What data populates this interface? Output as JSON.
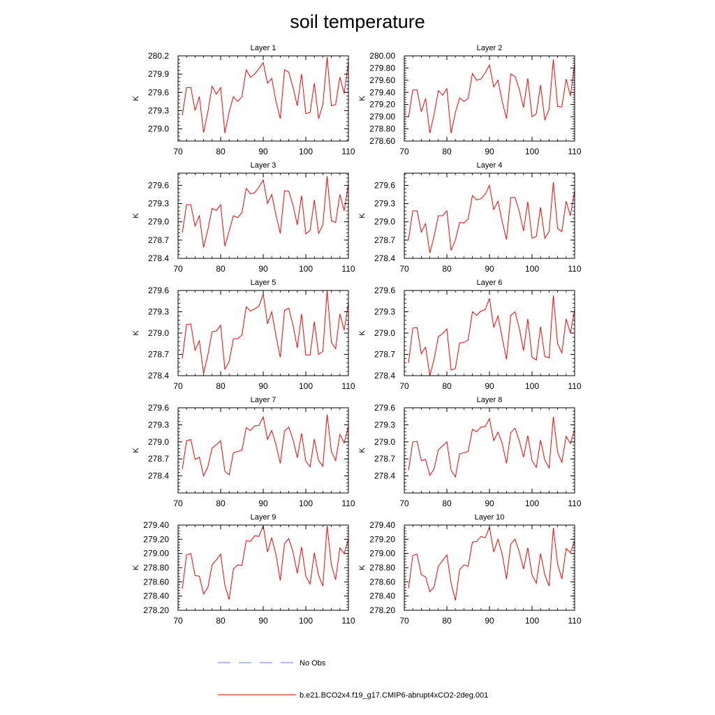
{
  "title": "soil temperature",
  "legend": {
    "entries": [
      {
        "label": "No Obs",
        "color": "#6b78c9",
        "style": "dashed"
      },
      {
        "label": "b.e21.BCO2x4.f19_g17.CMIP6-abrupt4xCO2-2deg.001",
        "color": "#ff0000",
        "style": "solid"
      }
    ]
  },
  "chart_data": [
    {
      "type": "line",
      "title": "Layer 1",
      "ylabel": "K",
      "xlim": [
        70,
        110
      ],
      "ylim": [
        278.8,
        280.2
      ],
      "xticks": [
        70,
        80,
        90,
        100,
        110
      ],
      "yticks": [
        279.0,
        279.3,
        279.6,
        279.9,
        280.2
      ],
      "ytick_labels": [
        "279.0",
        "279.3",
        "279.6",
        "279.9",
        "280.2"
      ],
      "x_start": 71,
      "series": [
        {
          "color": "#ff0000",
          "values": [
            279.22,
            279.68,
            279.68,
            279.3,
            279.53,
            278.94,
            279.28,
            279.7,
            279.57,
            279.68,
            278.93,
            279.28,
            279.53,
            279.45,
            279.53,
            279.97,
            279.85,
            279.9,
            279.99,
            280.09,
            279.75,
            279.83,
            279.45,
            279.17,
            279.97,
            279.93,
            279.68,
            279.38,
            279.9,
            279.25,
            279.27,
            279.75,
            279.17,
            279.4,
            280.18,
            279.38,
            279.4,
            279.85,
            279.58,
            280.1
          ]
        }
      ]
    },
    {
      "type": "line",
      "title": "Layer 2",
      "ylabel": "K",
      "xlim": [
        70,
        110
      ],
      "ylim": [
        278.6,
        280.0
      ],
      "xticks": [
        70,
        80,
        90,
        100,
        110
      ],
      "yticks": [
        278.6,
        278.8,
        279.0,
        279.2,
        279.4,
        279.6,
        279.8,
        280.0
      ],
      "ytick_labels": [
        "278.60",
        "278.80",
        "279.00",
        "279.20",
        "279.40",
        "279.60",
        "279.80",
        "280.00"
      ],
      "x_start": 71,
      "series": [
        {
          "color": "#ff0000",
          "values": [
            278.99,
            279.44,
            279.44,
            279.08,
            279.3,
            278.73,
            279.04,
            279.43,
            279.35,
            279.46,
            278.73,
            279.07,
            279.31,
            279.25,
            279.3,
            279.71,
            279.6,
            279.62,
            279.72,
            279.85,
            279.49,
            279.6,
            279.25,
            278.97,
            279.7,
            279.66,
            279.45,
            279.15,
            279.63,
            279.0,
            279.05,
            279.52,
            278.95,
            279.12,
            279.94,
            279.17,
            279.16,
            279.62,
            279.34,
            279.86
          ]
        }
      ]
    },
    {
      "type": "line",
      "title": "Layer 3",
      "ylabel": "K",
      "xlim": [
        70,
        110
      ],
      "ylim": [
        278.4,
        279.8
      ],
      "xticks": [
        70,
        80,
        90,
        100,
        110
      ],
      "yticks": [
        278.4,
        278.7,
        279.0,
        279.3,
        279.6
      ],
      "ytick_labels": [
        "278.4",
        "278.7",
        "279.0",
        "279.3",
        "279.6"
      ],
      "x_start": 71,
      "series": [
        {
          "color": "#ff0000",
          "values": [
            278.82,
            279.28,
            279.28,
            278.93,
            279.1,
            278.58,
            278.87,
            279.22,
            279.19,
            279.28,
            278.6,
            278.85,
            279.1,
            279.07,
            279.15,
            279.55,
            279.46,
            279.48,
            279.57,
            279.69,
            279.3,
            279.45,
            279.11,
            278.81,
            279.51,
            279.5,
            279.27,
            278.95,
            279.43,
            278.8,
            278.86,
            279.36,
            278.81,
            278.95,
            279.75,
            279.02,
            278.99,
            279.45,
            279.18,
            279.62
          ]
        }
      ]
    },
    {
      "type": "line",
      "title": "Layer 4",
      "ylabel": "K",
      "xlim": [
        70,
        110
      ],
      "ylim": [
        278.4,
        279.8
      ],
      "xticks": [
        70,
        80,
        90,
        100,
        110
      ],
      "yticks": [
        278.4,
        278.7,
        279.0,
        279.3,
        279.6
      ],
      "ytick_labels": [
        "278.4",
        "278.7",
        "279.0",
        "279.3",
        "279.6"
      ],
      "x_start": 71,
      "series": [
        {
          "color": "#ff0000",
          "values": [
            278.71,
            279.18,
            279.18,
            278.83,
            278.97,
            278.49,
            278.76,
            279.1,
            279.1,
            279.18,
            278.53,
            278.7,
            278.99,
            278.98,
            279.05,
            279.43,
            279.36,
            279.38,
            279.45,
            279.6,
            279.2,
            279.34,
            279.0,
            278.71,
            279.4,
            279.4,
            279.17,
            278.85,
            279.33,
            278.73,
            278.76,
            279.24,
            278.73,
            278.84,
            279.65,
            278.89,
            278.84,
            279.34,
            279.1,
            279.51
          ]
        }
      ]
    },
    {
      "type": "line",
      "title": "Layer 5",
      "ylabel": "K",
      "xlim": [
        70,
        110
      ],
      "ylim": [
        278.4,
        279.6
      ],
      "xticks": [
        70,
        80,
        90,
        100,
        110
      ],
      "yticks": [
        278.4,
        278.7,
        279.0,
        279.3,
        279.6
      ],
      "ytick_labels": [
        "278.4",
        "278.7",
        "279.0",
        "279.3",
        "279.6"
      ],
      "x_start": 71,
      "series": [
        {
          "color": "#ff0000",
          "values": [
            278.64,
            279.12,
            279.13,
            278.76,
            278.89,
            278.43,
            278.69,
            279.02,
            279.03,
            279.11,
            278.49,
            278.6,
            278.92,
            278.92,
            278.97,
            279.37,
            279.31,
            279.34,
            279.38,
            279.55,
            279.13,
            279.3,
            278.96,
            278.66,
            279.32,
            279.35,
            279.11,
            278.79,
            279.27,
            278.69,
            278.69,
            279.16,
            278.7,
            278.74,
            279.6,
            278.87,
            278.78,
            279.27,
            279.04,
            279.42
          ]
        }
      ]
    },
    {
      "type": "line",
      "title": "Layer 6",
      "ylabel": "K",
      "xlim": [
        70,
        110
      ],
      "ylim": [
        278.4,
        279.6
      ],
      "xticks": [
        70,
        80,
        90,
        100,
        110
      ],
      "yticks": [
        278.4,
        278.7,
        279.0,
        279.3,
        279.6
      ],
      "ytick_labels": [
        "278.4",
        "278.7",
        "279.0",
        "279.3",
        "279.6"
      ],
      "x_start": 71,
      "series": [
        {
          "color": "#ff0000",
          "values": [
            278.58,
            279.07,
            279.08,
            278.71,
            278.8,
            278.4,
            278.63,
            278.95,
            278.99,
            279.06,
            278.48,
            278.5,
            278.86,
            278.87,
            278.9,
            279.3,
            279.25,
            279.31,
            279.33,
            279.49,
            279.08,
            279.24,
            278.93,
            278.63,
            279.25,
            279.3,
            279.07,
            278.75,
            279.2,
            278.66,
            278.62,
            279.09,
            278.67,
            278.65,
            279.53,
            278.85,
            278.72,
            279.2,
            279.0,
            279.33
          ]
        }
      ]
    },
    {
      "type": "line",
      "title": "Layer 7",
      "ylabel": "K",
      "xlim": [
        70,
        110
      ],
      "ylim": [
        278.1,
        279.6
      ],
      "xticks": [
        70,
        80,
        90,
        100,
        110
      ],
      "yticks": [
        278.4,
        278.7,
        279.0,
        279.3,
        279.6
      ],
      "ytick_labels": [
        "278.4",
        "278.7",
        "279.0",
        "279.3",
        "279.6"
      ],
      "x_start": 71,
      "series": [
        {
          "color": "#ff0000",
          "values": [
            278.52,
            279.02,
            279.04,
            278.69,
            278.73,
            278.4,
            278.56,
            278.89,
            278.95,
            279.02,
            278.48,
            278.42,
            278.81,
            278.83,
            278.85,
            279.25,
            279.2,
            279.28,
            279.29,
            279.44,
            279.04,
            279.2,
            278.95,
            278.62,
            279.19,
            279.26,
            279.04,
            278.72,
            279.15,
            278.66,
            278.56,
            279.05,
            278.67,
            278.57,
            279.48,
            278.83,
            278.67,
            279.13,
            278.98,
            279.27
          ]
        }
      ]
    },
    {
      "type": "line",
      "title": "Layer 8",
      "ylabel": "K",
      "xlim": [
        70,
        110
      ],
      "ylim": [
        278.1,
        279.6
      ],
      "xticks": [
        70,
        80,
        90,
        100,
        110
      ],
      "yticks": [
        278.4,
        278.7,
        279.0,
        279.3,
        279.6
      ],
      "ytick_labels": [
        "278.4",
        "278.7",
        "279.0",
        "279.3",
        "279.6"
      ],
      "x_start": 71,
      "series": [
        {
          "color": "#ff0000",
          "values": [
            278.5,
            279.0,
            279.01,
            278.67,
            278.69,
            278.41,
            278.52,
            278.86,
            278.93,
            279.0,
            278.5,
            278.38,
            278.79,
            278.81,
            278.83,
            279.22,
            279.18,
            279.26,
            279.27,
            279.41,
            279.02,
            279.17,
            278.97,
            278.62,
            279.16,
            279.24,
            279.02,
            278.73,
            279.11,
            278.67,
            278.55,
            279.03,
            278.68,
            278.54,
            279.44,
            278.82,
            278.64,
            279.1,
            278.97,
            279.22
          ]
        }
      ]
    },
    {
      "type": "line",
      "title": "Layer 9",
      "ylabel": "K",
      "xlim": [
        70,
        110
      ],
      "ylim": [
        278.2,
        279.4
      ],
      "xticks": [
        70,
        80,
        90,
        100,
        110
      ],
      "yticks": [
        278.2,
        278.4,
        278.6,
        278.8,
        279.0,
        279.2,
        279.4
      ],
      "ytick_labels": [
        "278.20",
        "278.40",
        "278.60",
        "278.80",
        "279.00",
        "279.20",
        "279.40"
      ],
      "x_start": 71,
      "series": [
        {
          "color": "#ff0000",
          "values": [
            278.5,
            278.98,
            279.0,
            278.69,
            278.68,
            278.43,
            278.52,
            278.84,
            278.91,
            278.99,
            278.55,
            278.35,
            278.78,
            278.84,
            278.83,
            279.18,
            279.17,
            279.25,
            279.24,
            279.39,
            279.02,
            279.22,
            278.98,
            278.62,
            279.14,
            279.21,
            279.02,
            278.72,
            279.09,
            278.68,
            278.57,
            279.01,
            278.69,
            278.54,
            279.39,
            278.84,
            278.63,
            279.08,
            279.0,
            279.2
          ]
        }
      ]
    },
    {
      "type": "line",
      "title": "Layer 10",
      "ylabel": "K",
      "xlim": [
        70,
        110
      ],
      "ylim": [
        278.2,
        279.4
      ],
      "xticks": [
        70,
        80,
        90,
        100,
        110
      ],
      "yticks": [
        278.2,
        278.4,
        278.6,
        278.8,
        279.0,
        279.2,
        279.4
      ],
      "ytick_labels": [
        "278.20",
        "278.40",
        "278.60",
        "278.80",
        "279.00",
        "279.20",
        "279.40"
      ],
      "x_start": 71,
      "series": [
        {
          "color": "#ff0000",
          "values": [
            278.51,
            278.97,
            278.99,
            278.7,
            278.67,
            278.46,
            278.53,
            278.82,
            278.9,
            278.98,
            278.58,
            278.34,
            278.77,
            278.84,
            278.82,
            279.16,
            279.17,
            279.24,
            279.22,
            279.37,
            279.02,
            279.2,
            278.99,
            278.64,
            279.13,
            279.2,
            279.02,
            278.78,
            279.08,
            278.7,
            278.58,
            279.0,
            278.7,
            278.54,
            279.36,
            278.85,
            278.64,
            279.07,
            279.01,
            279.18
          ]
        }
      ]
    }
  ]
}
